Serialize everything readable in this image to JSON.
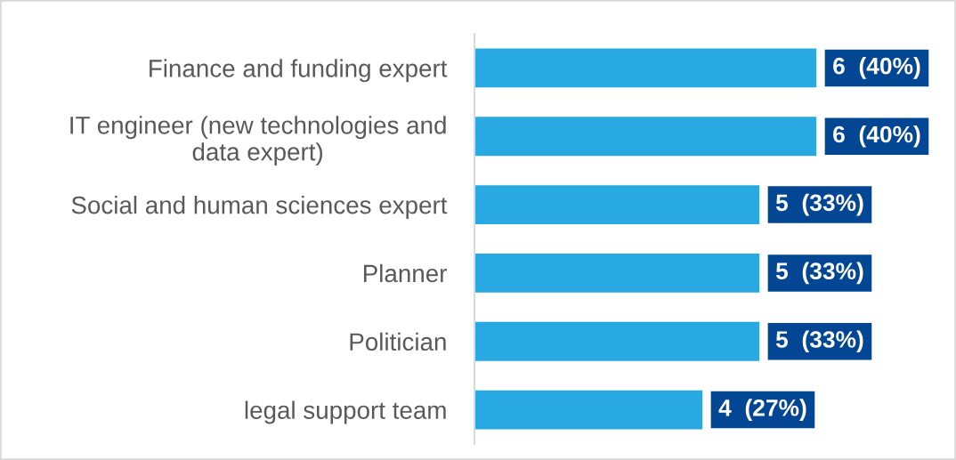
{
  "chart_data": {
    "type": "bar",
    "orientation": "horizontal",
    "categories": [
      "Finance and funding expert",
      "IT engineer (new technologies and\ndata expert)",
      "Social and human sciences expert",
      "Planner",
      "Politician",
      "legal support team"
    ],
    "values": [
      6,
      6,
      5,
      5,
      5,
      4
    ],
    "color": "#29a9e1",
    "value_labels": [
      "6  (40%)",
      "6  (40%)",
      "5  (33%)",
      "5  (33%)",
      "5  (33%)",
      "4  (27%)"
    ],
    "tick_labels": "y"
  }
}
